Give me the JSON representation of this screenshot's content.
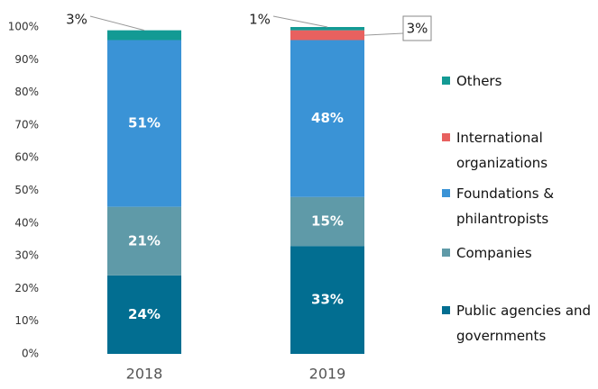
{
  "chart_data": {
    "type": "stacked_bar",
    "categories": [
      "2018",
      "2019"
    ],
    "series": [
      {
        "name": "Public agencies and governments",
        "color": "#026e91",
        "values": [
          24,
          33
        ],
        "value_labels": [
          "24%",
          "33%"
        ]
      },
      {
        "name": "Companies",
        "color": "#5f9aa8",
        "values": [
          21,
          15
        ],
        "value_labels": [
          "21%",
          "15%"
        ]
      },
      {
        "name": "Foundations & philantropists",
        "color": "#3a93d6",
        "values": [
          51,
          48
        ],
        "value_labels": [
          "51%",
          "48%"
        ]
      },
      {
        "name": "International organizations",
        "color": "#e8615f",
        "values": [
          null,
          3
        ],
        "value_labels": [
          null,
          "3%"
        ]
      },
      {
        "name": "Others",
        "color": "#139a94",
        "values": [
          3,
          1
        ],
        "value_labels": [
          "3%",
          "1%"
        ]
      }
    ],
    "ylim": [
      0,
      100
    ],
    "yticks": [
      {
        "value": 0,
        "label": "0%"
      },
      {
        "value": 10,
        "label": "10%"
      },
      {
        "value": 20,
        "label": "20%"
      },
      {
        "value": 30,
        "label": "30%"
      },
      {
        "value": 40,
        "label": "40%"
      },
      {
        "value": 50,
        "label": "50%"
      },
      {
        "value": 60,
        "label": "60%"
      },
      {
        "value": 70,
        "label": "70%"
      },
      {
        "value": 80,
        "label": "80%"
      },
      {
        "value": 90,
        "label": "90%"
      },
      {
        "value": 100,
        "label": "100%"
      }
    ],
    "legend": "right"
  }
}
